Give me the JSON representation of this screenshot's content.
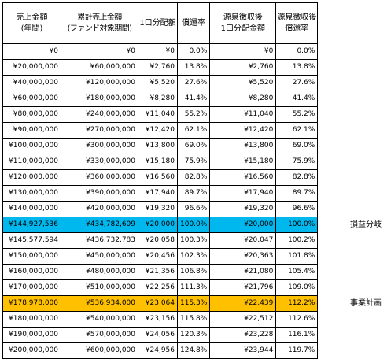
{
  "headers": [
    [
      "売上金額",
      "(年間)"
    ],
    [
      "累計売上金額",
      "(ファンド対象期間)"
    ],
    [
      "1口分配額"
    ],
    [
      "償還率"
    ],
    [
      "源泉徴収後",
      "1口分配金額"
    ],
    [
      "源泉徴収後",
      "償還率"
    ]
  ],
  "rows": [
    [
      "¥0",
      "¥0",
      "¥0",
      "0.0%",
      "¥0",
      "0.0%"
    ],
    [
      "¥20,000,000",
      "¥60,000,000",
      "¥2,760",
      "13.8%",
      "¥2,760",
      "13.8%"
    ],
    [
      "¥40,000,000",
      "¥120,000,000",
      "¥5,520",
      "27.6%",
      "¥5,520",
      "27.6%"
    ],
    [
      "¥60,000,000",
      "¥180,000,000",
      "¥8,280",
      "41.4%",
      "¥8,280",
      "41.4%"
    ],
    [
      "¥80,000,000",
      "¥240,000,000",
      "¥11,040",
      "55.2%",
      "¥11,040",
      "55.2%"
    ],
    [
      "¥90,000,000",
      "¥270,000,000",
      "¥12,420",
      "62.1%",
      "¥12,420",
      "62.1%"
    ],
    [
      "¥100,000,000",
      "¥300,000,000",
      "¥13,800",
      "69.0%",
      "¥13,800",
      "69.0%"
    ],
    [
      "¥110,000,000",
      "¥330,000,000",
      "¥15,180",
      "75.9%",
      "¥15,180",
      "75.9%"
    ],
    [
      "¥120,000,000",
      "¥360,000,000",
      "¥16,560",
      "82.8%",
      "¥16,560",
      "82.8%"
    ],
    [
      "¥130,000,000",
      "¥390,000,000",
      "¥17,940",
      "89.7%",
      "¥17,940",
      "89.7%"
    ],
    [
      "¥140,000,000",
      "¥420,000,000",
      "¥19,320",
      "96.6%",
      "¥19,320",
      "96.6%"
    ],
    [
      "¥144,927,536",
      "¥434,782,609",
      "¥20,000",
      "100.0%",
      "¥20,000",
      "100.0%"
    ],
    [
      "¥145,577,594",
      "¥436,732,783",
      "¥20,058",
      "100.3%",
      "¥20,047",
      "100.2%"
    ],
    [
      "¥150,000,000",
      "¥450,000,000",
      "¥20,456",
      "102.3%",
      "¥20,363",
      "101.8%"
    ],
    [
      "¥160,000,000",
      "¥480,000,000",
      "¥21,356",
      "106.8%",
      "¥21,080",
      "105.4%"
    ],
    [
      "¥170,000,000",
      "¥510,000,000",
      "¥22,256",
      "111.3%",
      "¥21,796",
      "109.0%"
    ],
    [
      "¥178,978,000",
      "¥536,934,000",
      "¥23,064",
      "115.3%",
      "¥22,439",
      "112.2%"
    ],
    [
      "¥180,000,000",
      "¥540,000,000",
      "¥23,156",
      "115.8%",
      "¥22,512",
      "112.6%"
    ],
    [
      "¥190,000,000",
      "¥570,000,000",
      "¥24,056",
      "120.3%",
      "¥23,228",
      "116.1%"
    ],
    [
      "¥200,000,000",
      "¥600,000,000",
      "¥24,956",
      "124.8%",
      "¥23,944",
      "119.7%"
    ]
  ],
  "highlights": [
    {
      "row": 11,
      "color": "#00b7ee",
      "label": "損益分岐"
    },
    {
      "row": 16,
      "color": "#ffc000",
      "label": "事業計画"
    }
  ]
}
